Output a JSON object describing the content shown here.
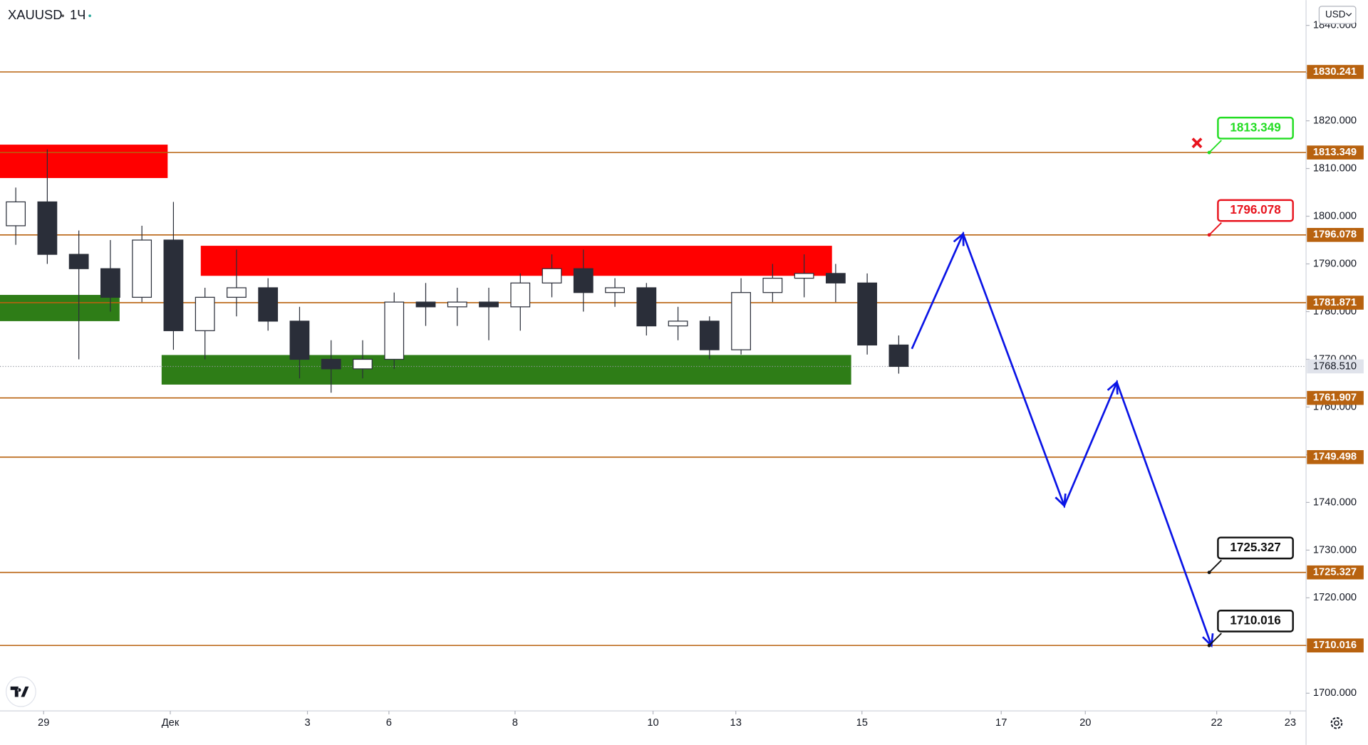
{
  "chart_data": {
    "type": "candlestick",
    "title": "XAUUSD",
    "interval": "1Ч",
    "currency": "USD",
    "xlim": [
      0,
      497
    ],
    "ylim": [
      1696.3,
      1845.3
    ],
    "xticks": [
      {
        "value": 16.6,
        "label": "29"
      },
      {
        "value": 64.8,
        "label": "Дек"
      },
      {
        "value": 117,
        "label": "3"
      },
      {
        "value": 148,
        "label": "6"
      },
      {
        "value": 196,
        "label": "8"
      },
      {
        "value": 248.5,
        "label": "10"
      },
      {
        "value": 280,
        "label": "13"
      },
      {
        "value": 328,
        "label": "15"
      },
      {
        "value": 381,
        "label": "17"
      },
      {
        "value": 413,
        "label": "20"
      },
      {
        "value": 463,
        "label": "22"
      },
      {
        "value": 491,
        "label": "23"
      }
    ],
    "yticks": [
      {
        "value": 1700,
        "label": "1700.000"
      },
      {
        "value": 1710,
        "label": "1710.000"
      },
      {
        "value": 1720,
        "label": "1720.000"
      },
      {
        "value": 1730,
        "label": "1730.000"
      },
      {
        "value": 1740,
        "label": "1740.000"
      },
      {
        "value": 1750,
        "label": "1750.000"
      },
      {
        "value": 1760,
        "label": "1760.000"
      },
      {
        "value": 1770,
        "label": "1770.000"
      },
      {
        "value": 1780,
        "label": "1780.000"
      },
      {
        "value": 1790,
        "label": "1790.000"
      },
      {
        "value": 1800,
        "label": "1800.000"
      },
      {
        "value": 1810,
        "label": "1810.000"
      },
      {
        "value": 1820,
        "label": "1820.000"
      },
      {
        "value": 1830,
        "label": "1830.000"
      },
      {
        "value": 1840,
        "label": "1840.000"
      }
    ],
    "x": [
      0,
      12,
      24,
      36,
      48,
      60,
      72,
      84,
      96,
      108,
      120,
      132,
      144,
      156,
      168,
      180,
      192,
      204,
      216,
      228,
      240,
      252,
      264,
      276,
      288,
      300,
      312,
      324,
      336
    ],
    "open": [
      1798,
      1803,
      1792,
      1789,
      1783,
      1795,
      1776,
      1783,
      1785,
      1778,
      1770,
      1768,
      1770,
      1782,
      1781,
      1782,
      1781,
      1786,
      1789,
      1784,
      1785,
      1777,
      1778,
      1772,
      1784,
      1787,
      1788,
      1786,
      1773
    ],
    "high": [
      1806,
      1814,
      1797,
      1795,
      1798,
      1803,
      1785,
      1793,
      1787,
      1781,
      1774,
      1774,
      1784,
      1786,
      1785,
      1785,
      1788,
      1792,
      1793,
      1787,
      1786,
      1781,
      1779,
      1787,
      1790,
      1792,
      1790,
      1788,
      1775
    ],
    "low": [
      1794,
      1790,
      1770,
      1780,
      1782,
      1772,
      1770,
      1779,
      1776,
      1766,
      1763,
      1766,
      1768,
      1777,
      1777,
      1774,
      1776,
      1783,
      1780,
      1781,
      1775,
      1774,
      1770,
      1771,
      1782,
      1783,
      1782,
      1771,
      1767
    ],
    "close": [
      1803,
      1792,
      1789,
      1783,
      1795,
      1776,
      1783,
      1785,
      1778,
      1770,
      1768,
      1770,
      1782,
      1781,
      1782,
      1781,
      1786,
      1789,
      1784,
      1785,
      1777,
      1778,
      1772,
      1784,
      1787,
      1788,
      1786,
      1773,
      1768.51
    ],
    "candle_color": "#2a2e39",
    "levels": [
      1830.241,
      1813.349,
      1796.078,
      1781.871,
      1761.907,
      1749.498,
      1725.327,
      1710.016
    ],
    "level_color": "#b8620f",
    "current_price": {
      "value": 1768.51,
      "label": "1768.510"
    },
    "zones": [
      {
        "x": [
          0,
          63.8
        ],
        "y": [
          1808.0,
          1815.0
        ],
        "color": "#ff0000"
      },
      {
        "x": [
          76.4,
          316.6
        ],
        "y": [
          1787.5,
          1793.8
        ],
        "color": "#ff0000"
      },
      {
        "x": [
          0,
          45.5
        ],
        "y": [
          1778.0,
          1783.5
        ],
        "color": "#2e7d17"
      },
      {
        "x": [
          61.5,
          323.9
        ],
        "y": [
          1764.7,
          1770.9
        ],
        "color": "#2e7d17"
      }
    ],
    "projection": {
      "x": [
        347,
        366.5,
        405,
        425,
        461
      ],
      "y": [
        1772.2,
        1796.3,
        1739.3,
        1765.2,
        1710.0
      ],
      "color": "#0a14e6"
    },
    "callouts": [
      {
        "value": 1813.349,
        "color": "#22dd22"
      },
      {
        "value": 1796.078,
        "color": "#e8141e"
      },
      {
        "value": 1725.327,
        "color": "#111111"
      },
      {
        "value": 1710.016,
        "color": "#111111"
      }
    ]
  }
}
